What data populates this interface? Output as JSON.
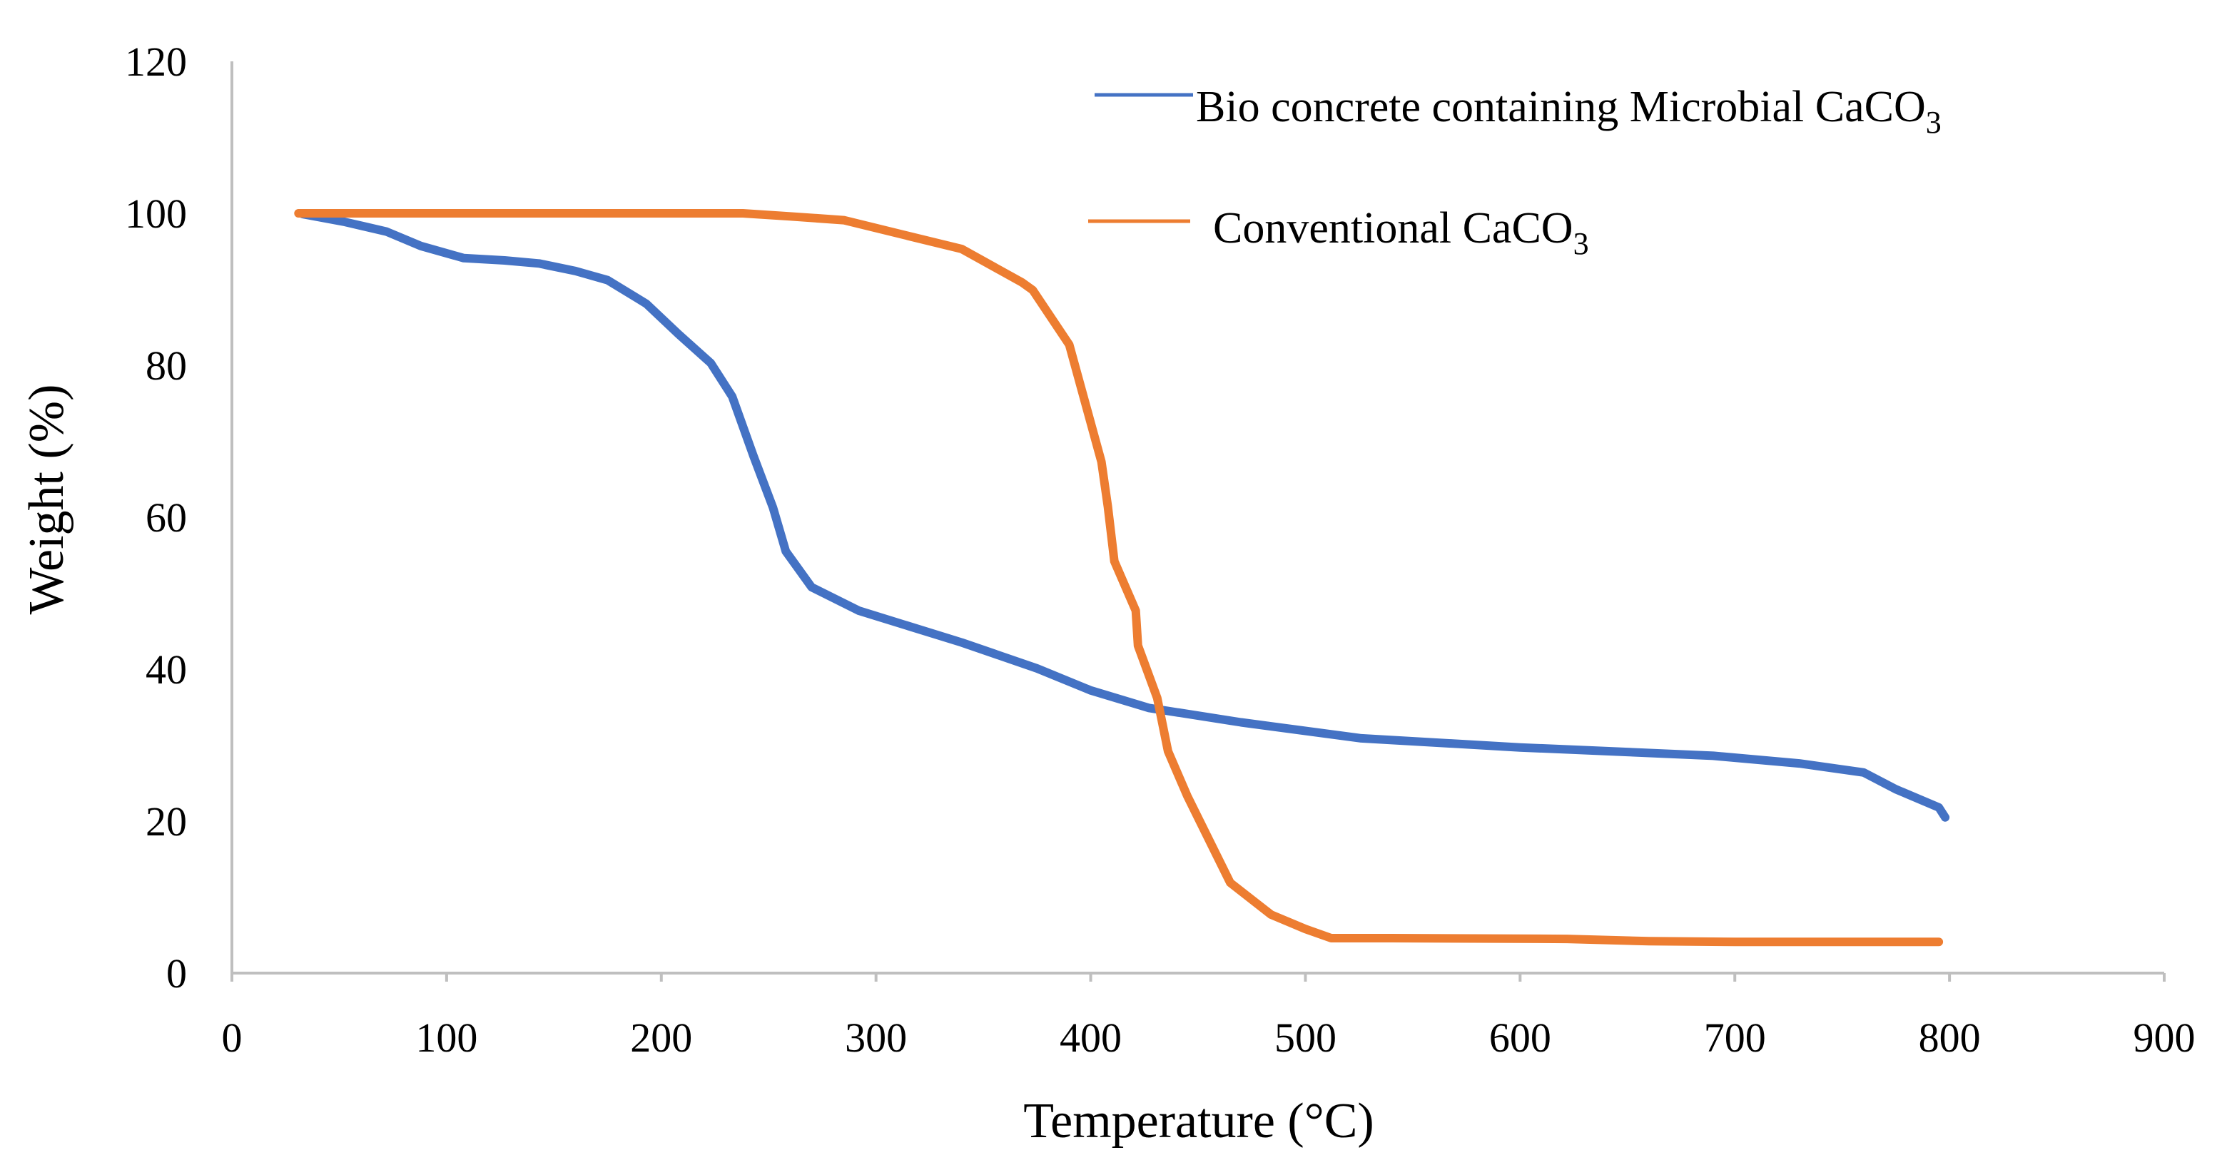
{
  "chart_data": {
    "type": "line",
    "xlabel": "Temperature (°C)",
    "ylabel": "Weight (%)",
    "xlim": [
      0,
      900
    ],
    "ylim": [
      0,
      120
    ],
    "xticks": [
      0,
      100,
      200,
      300,
      400,
      500,
      600,
      700,
      800,
      900
    ],
    "yticks": [
      0,
      20,
      40,
      60,
      80,
      100,
      120
    ],
    "grid": false,
    "legend_position": "top-right",
    "series": [
      {
        "name": "Bio concrete containing  Microbial CaCO",
        "name_subscript": "3",
        "color": "#4472c4",
        "x": [
          33,
          52,
          72,
          88,
          108,
          127,
          143,
          160,
          175,
          193,
          208,
          223,
          233,
          243,
          252,
          258,
          270,
          292,
          340,
          375,
          400,
          427,
          470,
          526,
          600,
          650,
          690,
          730,
          760,
          775,
          795,
          798
        ],
        "y": [
          99.9,
          98.9,
          97.6,
          95.7,
          94.1,
          93.8,
          93.4,
          92.4,
          91.2,
          88.1,
          84.1,
          80.3,
          75.9,
          68,
          61.3,
          55.5,
          50.8,
          47.7,
          43.5,
          40.1,
          37.2,
          34.9,
          33,
          30.9,
          29.7,
          29.1,
          28.6,
          27.6,
          26.4,
          24.2,
          21.8,
          20.5
        ]
      },
      {
        "name": "Conventional CaCO",
        "name_subscript": "3",
        "color": "#ed7d31",
        "x": [
          31,
          100,
          200,
          238,
          260,
          285,
          340,
          368,
          373,
          390,
          405,
          408,
          411,
          421,
          422,
          431,
          436,
          445,
          465,
          484,
          500,
          512,
          540,
          622,
          660,
          700,
          795
        ],
        "y": [
          100,
          100,
          100,
          100,
          99.6,
          99.1,
          95.3,
          90.9,
          89.9,
          82.7,
          67.3,
          61.4,
          54.2,
          47.7,
          43.1,
          36.2,
          29.2,
          23.3,
          11.9,
          7.7,
          5.8,
          4.6,
          4.6,
          4.5,
          4.2,
          4.1,
          4.1
        ]
      }
    ]
  }
}
